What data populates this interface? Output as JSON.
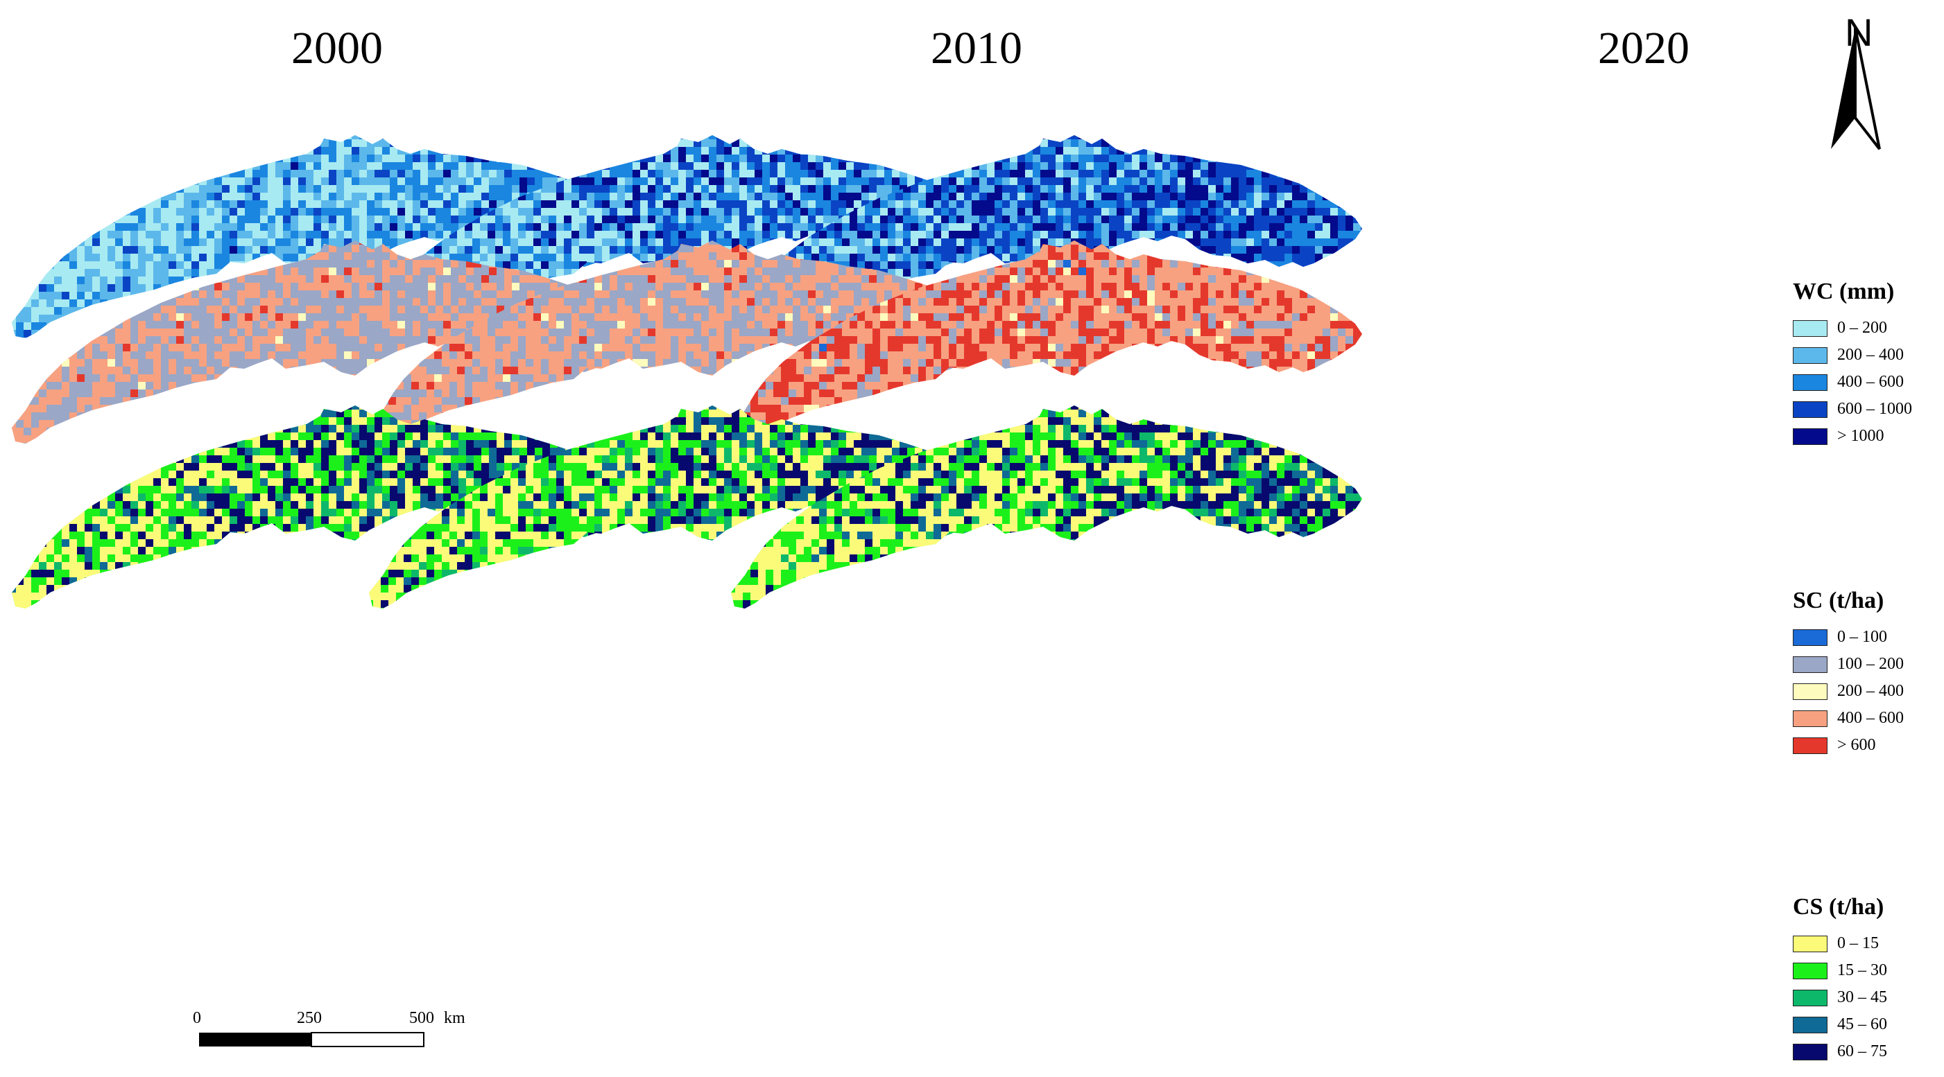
{
  "years": [
    "2000",
    "2010",
    "2020"
  ],
  "north_arrow": {
    "label": "N"
  },
  "legends": [
    {
      "title": "WC (mm)",
      "items": [
        {
          "label": "0 – 200",
          "color": "#a8eaf2"
        },
        {
          "label": "200 – 400",
          "color": "#5cb8ea"
        },
        {
          "label": "400 – 600",
          "color": "#1a86e0"
        },
        {
          "label": "600 – 1000",
          "color": "#0a44c4"
        },
        {
          "label": "> 1000",
          "color": "#030b8c"
        }
      ]
    },
    {
      "title": "SC (t/ha)",
      "items": [
        {
          "label": "0 – 100",
          "color": "#1a6ad8"
        },
        {
          "label": "100 – 200",
          "color": "#9aa7c6"
        },
        {
          "label": "200 – 400",
          "color": "#fdfbbd"
        },
        {
          "label": "400 – 600",
          "color": "#f7a181"
        },
        {
          "label": "> 600",
          "color": "#e5382c"
        }
      ]
    },
    {
      "title": "CS (t/ha)",
      "items": [
        {
          "label": "0 – 15",
          "color": "#fbfb79"
        },
        {
          "label": "15 – 30",
          "color": "#1cf01a"
        },
        {
          "label": "30 – 45",
          "color": "#0eb86a"
        },
        {
          "label": "45 – 60",
          "color": "#0f6a96"
        },
        {
          "label": "60 – 75",
          "color": "#08096e"
        }
      ]
    }
  ],
  "scale_bar": {
    "ticks": [
      "0",
      "250",
      "500"
    ],
    "unit": "km"
  }
}
